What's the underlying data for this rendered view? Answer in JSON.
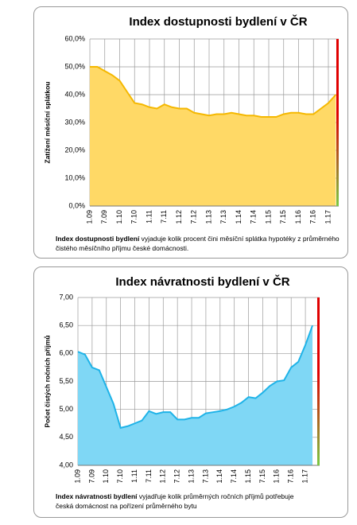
{
  "chart_data": [
    {
      "type": "area",
      "title": "Index dostupnosti bydlení  v ČR",
      "y_label": "Zatížení měsíční splátkou",
      "note_bold": "Index dostupnosti bydlení",
      "note": " vyjaduje kolik procent čini  měsíční splátka hypotéky z průměrného čistého měsíčního příjmu české domácnosti.",
      "categories": [
        "1.09",
        null,
        "7.09",
        null,
        "1.10",
        null,
        "7.10",
        null,
        "1.11",
        null,
        "7.11",
        null,
        "1.12",
        null,
        "7.12",
        null,
        "1.13",
        null,
        "7.13",
        null,
        "1.14",
        null,
        "7.14",
        null,
        "1.15",
        null,
        "7.15",
        null,
        "1.16",
        null,
        "7.16",
        null,
        "1.17",
        null
      ],
      "series": [
        {
          "color": "#f5b800",
          "fill": "#ffd966",
          "values": [
            50,
            50,
            48.5,
            47,
            45,
            41,
            37,
            36.5,
            35.5,
            35,
            36.5,
            35.5,
            35,
            35,
            33.5,
            33,
            32.5,
            33,
            33,
            33.5,
            33,
            32.5,
            32.5,
            32,
            32,
            32,
            33,
            33.5,
            33.5,
            33,
            33,
            35,
            37,
            40
          ]
        }
      ],
      "ylim": [
        0,
        60
      ],
      "yticks": [
        {
          "value": 0,
          "label": "0,0%"
        },
        {
          "value": 10,
          "label": "10,0%"
        },
        {
          "value": 20,
          "label": "20,0%"
        },
        {
          "value": 30,
          "label": "30,0%"
        },
        {
          "value": 40,
          "label": "40,0%"
        },
        {
          "value": 50,
          "label": "50,0%"
        },
        {
          "value": 60,
          "label": "60,0%"
        }
      ],
      "grid": true
    },
    {
      "type": "area",
      "title": "Index návratnosti bydlení v ČR",
      "y_label": "Počet čistých ročních příjmů",
      "note_bold": "Index návratnosti bydlení",
      "note": " vyjadřuje kolik průměrných ročních příjmů potřebuje česká domácnost na pořízení průměrného bytu",
      "categories": [
        "1.09",
        null,
        "7.09",
        null,
        "1.10",
        null,
        "7.10",
        null,
        "1.11",
        null,
        "7.11",
        null,
        "1.12",
        null,
        "7.12",
        null,
        "1.13",
        null,
        "7.13",
        null,
        "1.14",
        null,
        "7.14",
        null,
        "1.15",
        null,
        "7.15",
        null,
        "1.16",
        null,
        "7.16",
        null,
        "1.17",
        null
      ],
      "series": [
        {
          "color": "#1fb3e8",
          "fill": "#7fd7f5",
          "values": [
            6.03,
            5.98,
            5.75,
            5.7,
            5.4,
            5.1,
            4.67,
            4.7,
            4.75,
            4.8,
            4.97,
            4.92,
            4.95,
            4.95,
            4.82,
            4.82,
            4.85,
            4.85,
            4.93,
            4.95,
            4.97,
            5,
            5.05,
            5.12,
            5.22,
            5.2,
            5.3,
            5.42,
            5.5,
            5.52,
            5.75,
            5.85,
            6.15,
            6.5
          ]
        }
      ],
      "ylim": [
        4,
        7
      ],
      "yticks": [
        {
          "value": 4,
          "label": "4,00"
        },
        {
          "value": 4.5,
          "label": "4,50"
        },
        {
          "value": 5,
          "label": "5,00"
        },
        {
          "value": 5.5,
          "label": "5,50"
        },
        {
          "value": 6,
          "label": "6,00"
        },
        {
          "value": 6.5,
          "label": "6,50"
        },
        {
          "value": 7,
          "label": "7,00"
        }
      ],
      "grid": true
    }
  ]
}
